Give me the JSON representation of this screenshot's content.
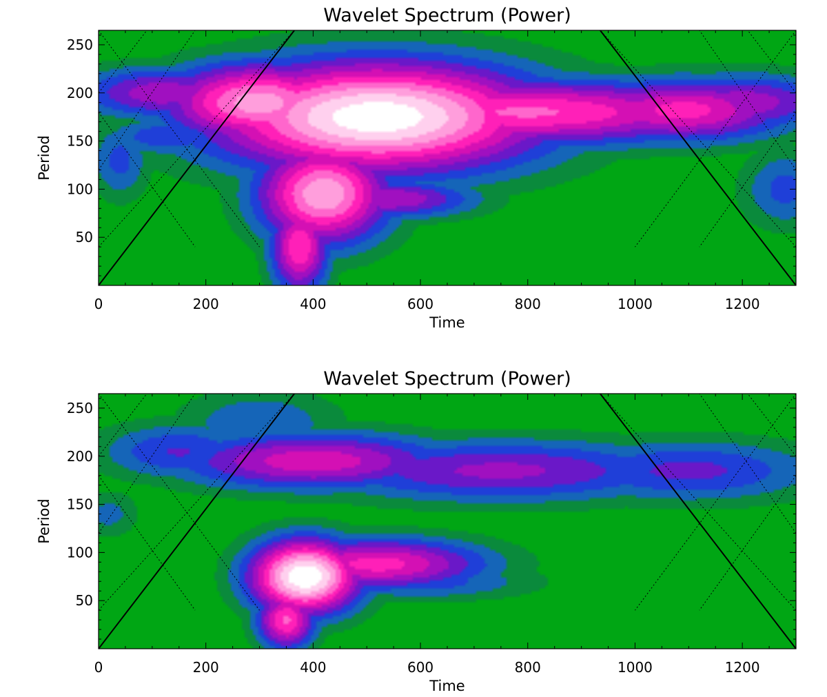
{
  "chart_data": [
    {
      "type": "heatmap",
      "title": "Wavelet Spectrum (Power)",
      "xlabel": "Time",
      "ylabel": "Period",
      "xlim": [
        0,
        1300
      ],
      "ylim": [
        0,
        265
      ],
      "xticks": [
        0,
        200,
        400,
        600,
        800,
        1000,
        1200
      ],
      "yticks": [
        50,
        100,
        150,
        200,
        250
      ],
      "colormap": [
        "#00a614",
        "#0a8a3c",
        "#1565b8",
        "#1f3fd8",
        "#6a18c8",
        "#a010c0",
        "#d410b4",
        "#ff20b8",
        "#ff66cc",
        "#ff9edc",
        "#ffd0ee",
        "#ffffff"
      ],
      "grid": false,
      "features": [
        {
          "time": 520,
          "period": 175,
          "dt": 230,
          "dp": 42,
          "power": 0.98
        },
        {
          "time": 300,
          "period": 190,
          "dt": 130,
          "dp": 30,
          "power": 0.8
        },
        {
          "time": 800,
          "period": 180,
          "dt": 300,
          "dp": 25,
          "power": 0.68
        },
        {
          "time": 1090,
          "period": 182,
          "dt": 150,
          "dp": 24,
          "power": 0.62
        },
        {
          "time": 120,
          "period": 200,
          "dt": 120,
          "dp": 20,
          "power": 0.48
        },
        {
          "time": 1200,
          "period": 190,
          "dt": 130,
          "dp": 22,
          "power": 0.48
        },
        {
          "time": 420,
          "period": 95,
          "dt": 90,
          "dp": 38,
          "power": 0.82
        },
        {
          "time": 375,
          "period": 40,
          "dt": 40,
          "dp": 35,
          "power": 0.66
        },
        {
          "time": 540,
          "period": 90,
          "dt": 120,
          "dp": 15,
          "power": 0.5
        },
        {
          "time": 420,
          "period": 140,
          "dt": 70,
          "dp": 30,
          "power": 0.55
        },
        {
          "time": 130,
          "period": 155,
          "dt": 90,
          "dp": 15,
          "power": 0.32
        },
        {
          "time": 1280,
          "period": 100,
          "dt": 60,
          "dp": 30,
          "power": 0.28
        },
        {
          "time": 40,
          "period": 130,
          "dt": 40,
          "dp": 30,
          "power": 0.28
        }
      ]
    },
    {
      "type": "heatmap",
      "title": "Wavelet Spectrum (Power)",
      "xlabel": "Time",
      "ylabel": "Period",
      "xlim": [
        0,
        1300
      ],
      "ylim": [
        0,
        265
      ],
      "xticks": [
        0,
        200,
        400,
        600,
        800,
        1000,
        1200
      ],
      "yticks": [
        50,
        100,
        150,
        200,
        250
      ],
      "colormap": [
        "#00a614",
        "#0a8a3c",
        "#1565b8",
        "#1f3fd8",
        "#6a18c8",
        "#a010c0",
        "#d410b4",
        "#ff20b8",
        "#ff66cc",
        "#ff9edc",
        "#ffd0ee",
        "#ffffff"
      ],
      "grid": false,
      "features": [
        {
          "time": 385,
          "period": 75,
          "dt": 75,
          "dp": 28,
          "power": 1.0
        },
        {
          "time": 520,
          "period": 88,
          "dt": 150,
          "dp": 20,
          "power": 0.62
        },
        {
          "time": 350,
          "period": 30,
          "dt": 40,
          "dp": 22,
          "power": 0.68
        },
        {
          "time": 400,
          "period": 195,
          "dt": 190,
          "dp": 22,
          "power": 0.56
        },
        {
          "time": 750,
          "period": 185,
          "dt": 260,
          "dp": 24,
          "power": 0.44
        },
        {
          "time": 1100,
          "period": 185,
          "dt": 180,
          "dp": 24,
          "power": 0.36
        },
        {
          "time": 150,
          "period": 205,
          "dt": 110,
          "dp": 22,
          "power": 0.34
        },
        {
          "time": 300,
          "period": 235,
          "dt": 110,
          "dp": 25,
          "power": 0.25
        },
        {
          "time": 600,
          "period": 70,
          "dt": 150,
          "dp": 14,
          "power": 0.3
        },
        {
          "time": 20,
          "period": 140,
          "dt": 40,
          "dp": 18,
          "power": 0.2
        }
      ]
    }
  ]
}
